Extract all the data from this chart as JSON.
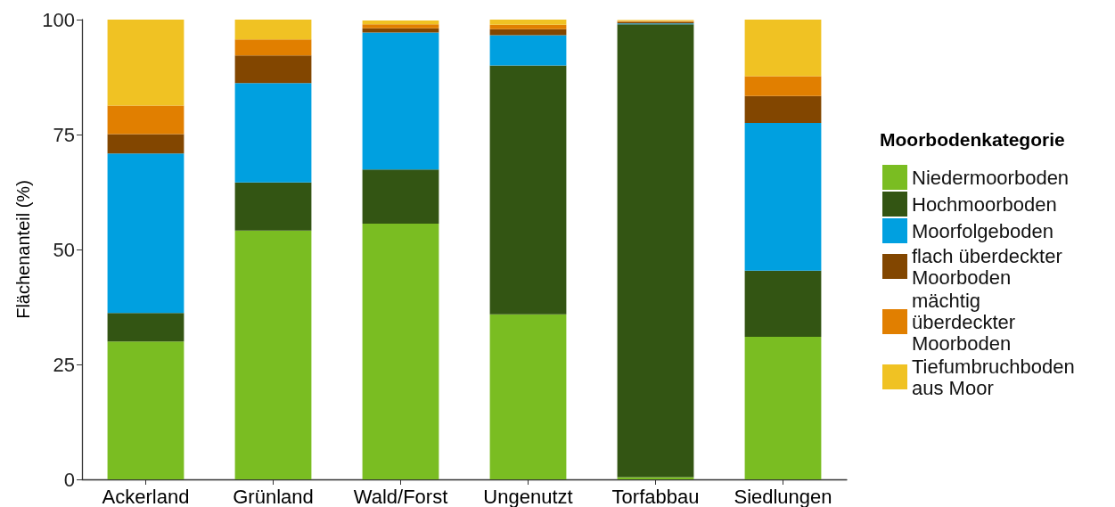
{
  "chart_data": {
    "type": "bar",
    "stacked": true,
    "ylabel": "Flächenanteil (%)",
    "legend_title": "Moorbodenkategorie",
    "categories": [
      "Ackerland",
      "Grünland",
      "Wald/Forst",
      "Ungenutzt",
      "Torfabbau",
      "Siedlungen"
    ],
    "series": [
      {
        "name": "Niedermoorboden",
        "color": "#7abd22",
        "values": [
          30,
          54.1,
          55.6,
          35.9,
          0.5,
          31
        ]
      },
      {
        "name": "Hochmoorboden",
        "color": "#335513",
        "values": [
          6.2,
          10.5,
          11.8,
          54.1,
          98.5,
          14.4
        ]
      },
      {
        "name": "Moorfolgeboden",
        "color": "#00a0e0",
        "values": [
          34.7,
          21.6,
          29.8,
          6.6,
          0.2,
          32.1
        ]
      },
      {
        "name": "flach überdeckter Moorboden",
        "color": "#824600",
        "values": [
          4.2,
          6.0,
          0.9,
          1.3,
          0.3,
          5.9
        ]
      },
      {
        "name": "mächtig überdeckter Moorboden",
        "color": "#e17f00",
        "values": [
          6.2,
          3.5,
          0.9,
          1.0,
          0.2,
          4.3
        ]
      },
      {
        "name": "Tiefumbruchboden aus Moor",
        "color": "#f0c223",
        "values": [
          18.7,
          4.3,
          0.8,
          1.1,
          0.2,
          12.3
        ]
      }
    ],
    "ylim": [
      0,
      100
    ],
    "yticks": [
      0,
      25,
      50,
      75,
      100
    ],
    "grid": false,
    "legend": "right"
  }
}
